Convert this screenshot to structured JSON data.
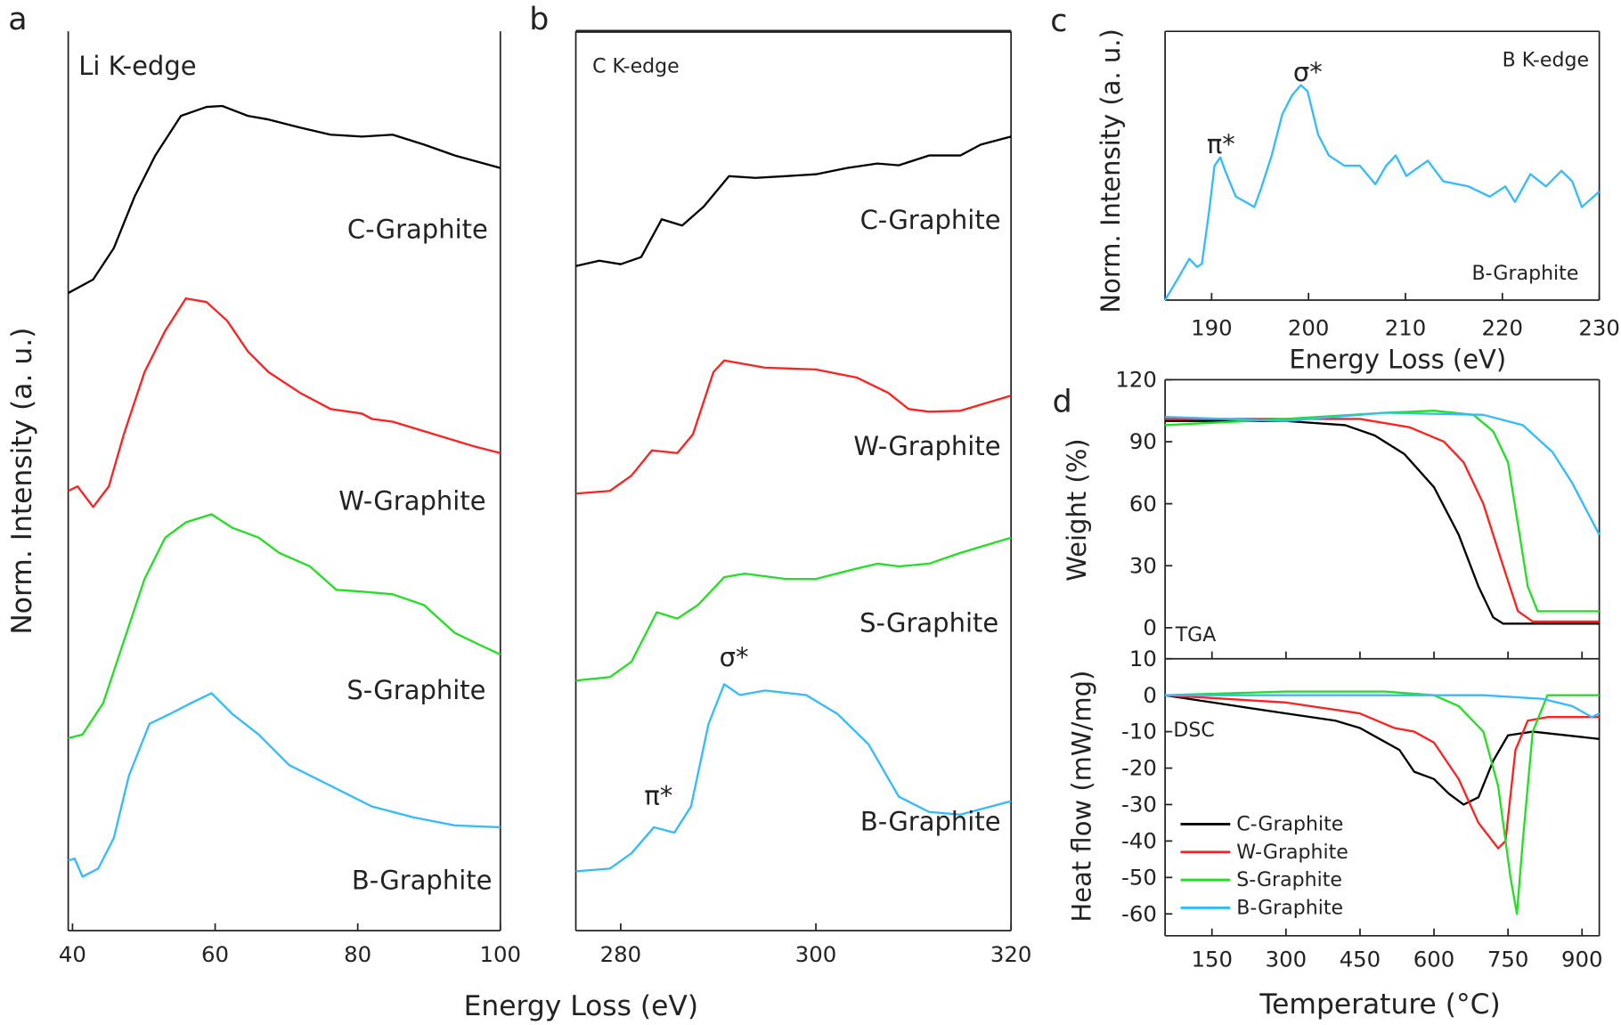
{
  "colors": {
    "C-Graphite": "#000000",
    "W-Graphite": "#ff2020",
    "S-Graphite": "#22e022",
    "B-Graphite": "#33bbff"
  },
  "panel_labels": [
    "a",
    "b",
    "c",
    "d"
  ],
  "chart_data": [
    {
      "panel": "a",
      "type": "line",
      "annotation": "Li K-edge",
      "xlabel": "Energy Loss (eV)",
      "ylabel": "Norm. Intensity (a. u.)",
      "xlim": [
        39.4,
        100
      ],
      "xticks": [
        40,
        60,
        80,
        100
      ],
      "ylim": [
        0,
        100
      ],
      "series": [
        {
          "name": "C-Graphite",
          "x": [
            39.4,
            42.9,
            45.8,
            48.7,
            51.6,
            55.2,
            58.8,
            61.0,
            64.6,
            67.5,
            71.9,
            76.2,
            80.6,
            84.9,
            89.3,
            93.6,
            100
          ],
          "y": [
            70.9,
            72.4,
            75.9,
            81.6,
            86.2,
            90.6,
            91.6,
            91.7,
            90.6,
            90.2,
            89.3,
            88.5,
            88.3,
            88.5,
            87.4,
            86.2,
            84.8
          ]
        },
        {
          "name": "W-Graphite",
          "x": [
            39.4,
            40.7,
            42.9,
            45.1,
            47.2,
            50.1,
            53.0,
            55.9,
            58.8,
            61.7,
            64.6,
            67.5,
            71.9,
            76.2,
            80.6,
            82.0,
            84.9,
            90.7,
            96.5,
            100
          ],
          "y": [
            48.9,
            49.4,
            47.1,
            49.4,
            55.2,
            62.1,
            66.7,
            70.3,
            69.9,
            67.8,
            64.4,
            62.1,
            59.8,
            58.0,
            57.5,
            56.9,
            56.6,
            55.2,
            53.8,
            53.1
          ]
        },
        {
          "name": "S-Graphite",
          "x": [
            39.4,
            41.4,
            44.3,
            47.2,
            50.1,
            53.0,
            55.9,
            59.5,
            62.4,
            66.1,
            69.0,
            73.3,
            77.0,
            80.6,
            84.9,
            89.3,
            93.6,
            96.5,
            100
          ],
          "y": [
            21.4,
            21.8,
            25.3,
            32.2,
            39.1,
            43.7,
            45.4,
            46.3,
            44.8,
            43.7,
            42.0,
            40.5,
            37.9,
            37.7,
            37.4,
            36.2,
            33.1,
            32.0,
            30.7
          ]
        },
        {
          "name": "B-Graphite",
          "x": [
            39.4,
            40.3,
            41.4,
            43.6,
            45.8,
            47.9,
            50.8,
            53.7,
            56.6,
            59.5,
            62.4,
            66.1,
            70.4,
            76.2,
            82.0,
            87.8,
            93.6,
            100
          ],
          "y": [
            7.8,
            8.0,
            6.0,
            6.9,
            10.3,
            17.2,
            23.0,
            24.1,
            25.3,
            26.4,
            24.1,
            21.8,
            18.4,
            16.1,
            13.8,
            12.6,
            11.7,
            11.5
          ]
        }
      ]
    },
    {
      "panel": "b",
      "type": "line",
      "annotation": "C K-edge",
      "peak_labels": {
        "pi": "π*",
        "sigma": "σ*"
      },
      "xlim": [
        275.4,
        320
      ],
      "xticks": [
        280,
        300,
        320
      ],
      "ylim": [
        0,
        100
      ],
      "series": [
        {
          "name": "C-Graphite",
          "x": [
            275.4,
            277.8,
            280,
            282.1,
            284.2,
            286.3,
            288.5,
            291.1,
            293.8,
            296.9,
            300,
            303.2,
            306.3,
            308.5,
            311.6,
            314.8,
            316.9,
            320
          ],
          "y": [
            73.9,
            74.5,
            74.1,
            74.9,
            79.1,
            78.4,
            80.5,
            83.9,
            83.7,
            83.9,
            84.1,
            84.8,
            85.3,
            85.1,
            86.2,
            86.2,
            87.4,
            88.3
          ]
        },
        {
          "name": "W-Graphite",
          "x": [
            275.4,
            278.9,
            281.1,
            283.2,
            285.8,
            287.4,
            289.5,
            290.6,
            294.8,
            300,
            304.2,
            307.4,
            309.5,
            311.6,
            314.8,
            320
          ],
          "y": [
            48.6,
            48.9,
            50.6,
            53.4,
            53.1,
            55.2,
            62.1,
            63.4,
            62.6,
            62.4,
            61.5,
            59.8,
            58.0,
            57.7,
            57.8,
            59.5
          ]
        },
        {
          "name": "S-Graphite",
          "x": [
            275.4,
            278.9,
            281.1,
            283.7,
            285.8,
            287.9,
            290.6,
            292.7,
            296.9,
            300,
            303.2,
            306.3,
            308.5,
            311.6,
            314.8,
            320
          ],
          "y": [
            27.8,
            28.2,
            29.9,
            35.4,
            34.7,
            36.2,
            39.3,
            39.7,
            39.1,
            39.1,
            40.0,
            40.8,
            40.5,
            40.8,
            42.0,
            43.7
          ]
        },
        {
          "name": "B-Graphite",
          "x": [
            275.4,
            278.9,
            281.1,
            283.4,
            285.5,
            287.2,
            289.0,
            290.6,
            292.2,
            294.8,
            299.0,
            302.2,
            305.4,
            308.5,
            311.6,
            314.8,
            320
          ],
          "y": [
            6.6,
            6.9,
            8.6,
            11.5,
            10.9,
            13.8,
            23.0,
            27.4,
            26.2,
            26.7,
            26.2,
            24.1,
            20.7,
            14.9,
            13.2,
            12.9,
            14.4
          ]
        }
      ]
    },
    {
      "panel": "c",
      "type": "line",
      "annotation": "B K-edge",
      "peak_labels": {
        "pi": "π*",
        "sigma": "σ*"
      },
      "xlabel": "Energy Loss (eV)",
      "ylabel": "Norm. Intensity (a. u.)",
      "xlim": [
        185.2,
        230
      ],
      "xticks": [
        190,
        200,
        210,
        220,
        230
      ],
      "ylim": [
        0,
        100
      ],
      "series": [
        {
          "name": "B-Graphite",
          "x": [
            185.2,
            186.6,
            187.7,
            188.5,
            189.0,
            189.8,
            190.3,
            190.9,
            191.4,
            192.5,
            193.5,
            194.4,
            195.1,
            196.2,
            197.3,
            198.3,
            199.2,
            199.9,
            201.0,
            202.1,
            203.7,
            205.3,
            206.9,
            208.0,
            209.0,
            210.1,
            212.3,
            213.9,
            216.5,
            218.7,
            220.3,
            221.3,
            222.9,
            224.5,
            226.1,
            227.2,
            228.2,
            230
          ],
          "y": [
            0,
            8.5,
            15.4,
            12.3,
            13.5,
            34.6,
            50.0,
            53.1,
            48.1,
            38.5,
            36.5,
            34.6,
            41.5,
            53.8,
            69.2,
            76.2,
            80.0,
            77.7,
            61.5,
            53.8,
            50.0,
            50.0,
            43.1,
            50.0,
            53.8,
            46.2,
            51.9,
            44.2,
            42.3,
            38.5,
            42.3,
            36.5,
            46.9,
            42.3,
            48.1,
            44.2,
            34.6,
            40.4
          ]
        }
      ]
    },
    {
      "panel": "d-tga",
      "type": "line",
      "annotation": "TGA",
      "ylabel": "Weight (%)",
      "xlim": [
        55,
        935
      ],
      "ylim": [
        -15,
        120
      ],
      "yticks": [
        0,
        30,
        60,
        90,
        120
      ],
      "series": [
        {
          "name": "C-Graphite",
          "x": [
            55,
            300,
            420,
            480,
            540,
            600,
            650,
            690,
            720,
            740,
            935
          ],
          "y": [
            100,
            100,
            98,
            93,
            84,
            68,
            45,
            20,
            5,
            2,
            2
          ]
        },
        {
          "name": "W-Graphite",
          "x": [
            55,
            300,
            450,
            550,
            620,
            660,
            700,
            740,
            770,
            800,
            935
          ],
          "y": [
            101,
            101,
            101,
            97,
            90,
            80,
            60,
            30,
            8,
            3,
            3
          ]
        },
        {
          "name": "S-Graphite",
          "x": [
            55,
            300,
            500,
            600,
            680,
            720,
            750,
            770,
            790,
            810,
            935
          ],
          "y": [
            98,
            101,
            104,
            105,
            103,
            95,
            80,
            50,
            20,
            8,
            8
          ]
        },
        {
          "name": "B-Graphite",
          "x": [
            55,
            300,
            500,
            700,
            780,
            840,
            880,
            935
          ],
          "y": [
            102,
            100,
            104,
            103,
            98,
            85,
            70,
            45
          ]
        }
      ]
    },
    {
      "panel": "d-dsc",
      "type": "line",
      "annotation": "DSC",
      "xlabel": "Temperature (°C)",
      "ylabel": "Heat flow (mW/mg)",
      "xlim": [
        55,
        935
      ],
      "xticks": [
        150,
        300,
        450,
        600,
        750,
        900
      ],
      "ylim": [
        -66,
        10
      ],
      "yticks": [
        10,
        0,
        -10,
        -20,
        -30,
        -40,
        -50,
        -60
      ],
      "legend": "bottom-left",
      "series": [
        {
          "name": "C-Graphite",
          "x": [
            55,
            200,
            300,
            400,
            450,
            490,
            530,
            560,
            600,
            630,
            660,
            690,
            720,
            750,
            800,
            935
          ],
          "y": [
            0,
            -3,
            -5,
            -7,
            -9,
            -12,
            -15,
            -21,
            -23,
            -27,
            -30,
            -28,
            -18,
            -11,
            -10,
            -12
          ]
        },
        {
          "name": "W-Graphite",
          "x": [
            55,
            300,
            450,
            520,
            560,
            600,
            650,
            690,
            730,
            745,
            765,
            790,
            830,
            935
          ],
          "y": [
            0,
            -2,
            -5,
            -9,
            -10,
            -13,
            -23,
            -35,
            -42,
            -40,
            -15,
            -7,
            -6,
            -6
          ]
        },
        {
          "name": "S-Graphite",
          "x": [
            55,
            300,
            500,
            600,
            650,
            700,
            730,
            755,
            768,
            780,
            800,
            830,
            935
          ],
          "y": [
            0,
            1,
            1,
            0,
            -3,
            -10,
            -25,
            -50,
            -60,
            -40,
            -10,
            0,
            0
          ]
        },
        {
          "name": "B-Graphite",
          "x": [
            55,
            500,
            700,
            820,
            880,
            920,
            935
          ],
          "y": [
            0,
            0,
            0,
            -1,
            -3,
            -6,
            -5
          ]
        }
      ]
    }
  ]
}
